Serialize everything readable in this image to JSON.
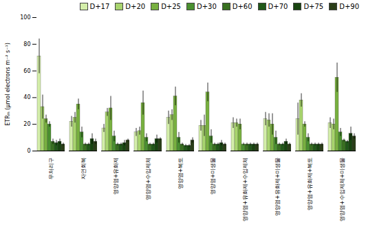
{
  "chart_data": {
    "type": "bar",
    "categories": [
      "무처리구",
      "자연회복",
      "영양염+유화제",
      "영양염+수입제체",
      "영양염+복토",
      "영양염+미생물",
      "영양염+유화제+수입제체",
      "영양염+유화제+미생물",
      "영양염+유화제+복토",
      "영양염+수입제체+미생물"
    ],
    "series": [
      {
        "name": "D+17",
        "color": "#d4eeaa",
        "values": [
          71,
          22,
          17,
          14,
          25,
          19,
          21,
          24,
          24,
          21
        ],
        "errors": [
          13,
          4,
          3,
          3,
          5,
          4,
          4,
          5,
          12,
          4
        ]
      },
      {
        "name": "D+20",
        "color": "#a8d46e",
        "values": [
          33,
          25,
          29,
          15,
          27,
          19,
          21,
          23,
          38,
          20
        ],
        "errors": [
          9,
          4,
          3,
          3,
          4,
          8,
          3,
          5,
          5,
          4
        ]
      },
      {
        "name": "D+25",
        "color": "#78b040",
        "values": [
          24,
          35,
          32,
          36,
          41,
          44,
          20,
          20,
          20,
          55
        ],
        "errors": [
          3,
          4,
          9,
          9,
          7,
          7,
          4,
          8,
          2,
          11
        ]
      },
      {
        "name": "D+30",
        "color": "#4a9030",
        "values": [
          20,
          14,
          11,
          10,
          10,
          11,
          5,
          10,
          10,
          14
        ],
        "errors": [
          2,
          4,
          4,
          3,
          4,
          5,
          1,
          5,
          3,
          3
        ]
      },
      {
        "name": "D+60",
        "color": "#387020",
        "values": [
          7,
          5,
          5,
          5,
          5,
          5,
          5,
          5,
          5,
          8
        ],
        "errors": [
          2,
          1,
          1,
          1,
          1,
          1,
          1,
          1,
          1,
          1
        ]
      },
      {
        "name": "D+70",
        "color": "#205818",
        "values": [
          6,
          5,
          5,
          5,
          4,
          5,
          5,
          5,
          5,
          7
        ],
        "errors": [
          2,
          1,
          1,
          1,
          1,
          1,
          1,
          1,
          1,
          1
        ]
      },
      {
        "name": "D+75",
        "color": "#184510",
        "values": [
          7,
          9,
          6,
          9,
          4,
          6,
          5,
          7,
          5,
          13
        ],
        "errors": [
          2,
          4,
          2,
          3,
          1,
          2,
          1,
          2,
          1,
          5
        ]
      },
      {
        "name": "D+90",
        "color": "#2a3d18",
        "values": [
          5,
          7,
          8,
          9,
          8,
          5,
          5,
          5,
          5,
          11
        ],
        "errors": [
          1,
          2,
          1,
          1,
          2,
          1,
          1,
          1,
          1,
          2
        ]
      }
    ],
    "ylabel": "ETRₘ (μmol electrons m⁻² s⁻¹)",
    "ylim": [
      0,
      100
    ],
    "yticks": [
      0,
      20,
      40,
      60,
      80,
      100
    ],
    "grid": false,
    "legend": "upper right"
  }
}
